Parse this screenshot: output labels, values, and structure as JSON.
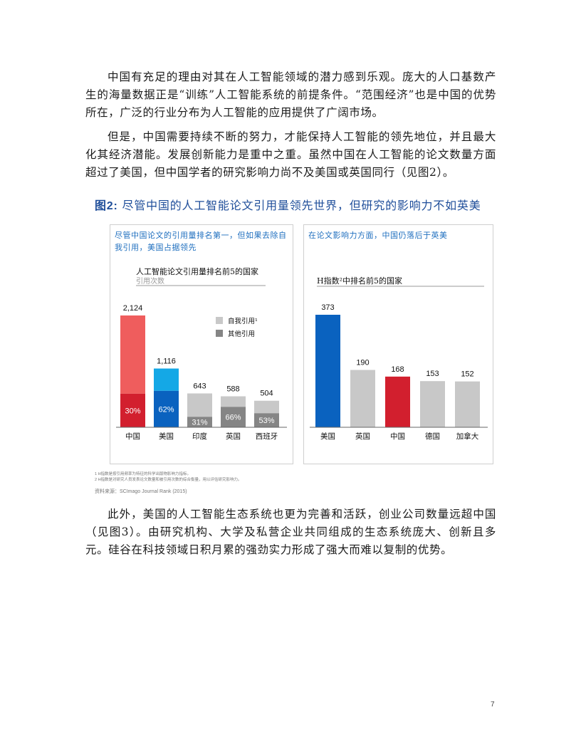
{
  "paragraphs": [
    "中国有充足的理由对其在人工智能领域的潜力感到乐观。庞大的人口基数产生的海量数据正是“训练”人工智能系统的前提条件。“范围经济”也是中国的优势所在，广泛的行业分布为人工智能的应用提供了广阔市场。",
    "但是，中国需要持续不断的努力，才能保持人工智能的领先地位，并且最大化其经济潜能。发展创新能力是重中之重。虽然中国在人工智能的论文数量方面超过了美国，但中国学者的研究影响力尚不及美国或英国同行（见图2）。",
    "此外，美国的人工智能生态系统也更为完善和活跃，创业公司数量远超中国（见图3）。由研究机构、大学及私营企业共同组成的生态系统庞大、创新且多元。硅谷在科技领域日积月累的强劲实力形成了强大而难以复制的优势。"
  ],
  "figure": {
    "label": "图2:",
    "title": "尽管中国的人工智能论文引用量领先世界，但研究的影响力不如英美"
  },
  "chart_data": [
    {
      "type": "bar",
      "subtitle": "尽管中国论文的引用量排名第一，但如果去除自我引用，美国占据领先",
      "title": "人工智能论文引用量排名前5的国家",
      "ylabel": "引用次数",
      "categories": [
        "中国",
        "美国",
        "印度",
        "英国",
        "西班牙"
      ],
      "values": [
        2124,
        1116,
        643,
        588,
        504
      ],
      "value_labels": [
        "2,124",
        "1,116",
        "643",
        "588",
        "504"
      ],
      "share_values": [
        30,
        62,
        31,
        66,
        53
      ],
      "share_labels": [
        "30%",
        "62%",
        "31%",
        "66%",
        "53%"
      ],
      "legend": [
        "自我引用¹",
        "其他引用"
      ],
      "ylim": [
        0,
        2124
      ],
      "colors": {
        "china_self": "#ef5d5d",
        "china_other": "#d21f2e",
        "us_self": "#14a8e6",
        "us_other": "#0a62bf",
        "rest_self": "#c8c8c8",
        "rest_other": "#858585"
      }
    },
    {
      "type": "bar",
      "subtitle": "在论文影响力方面，中国仍落后于英美",
      "title": "H指数²中排名前5的国家",
      "categories": [
        "美国",
        "英国",
        "中国",
        "德国",
        "加拿大"
      ],
      "values": [
        373,
        190,
        168,
        153,
        152
      ],
      "value_labels": [
        "373",
        "190",
        "168",
        "153",
        "152"
      ],
      "ylim": [
        0,
        373
      ],
      "colors": {
        "us": "#0a62bf",
        "china": "#d21f2e",
        "other": "#c8c8c8"
      }
    }
  ],
  "notes": [
    "1 H指数是按引用频率为特征的科学出版物影响力指标。",
    "2 H指数是对研究人员发表论文数量和被引用次数的综合衡量，用以评估研究影响力。"
  ],
  "source": "资料来源：SCImago Journal Rank (2015)",
  "page_number": "7"
}
